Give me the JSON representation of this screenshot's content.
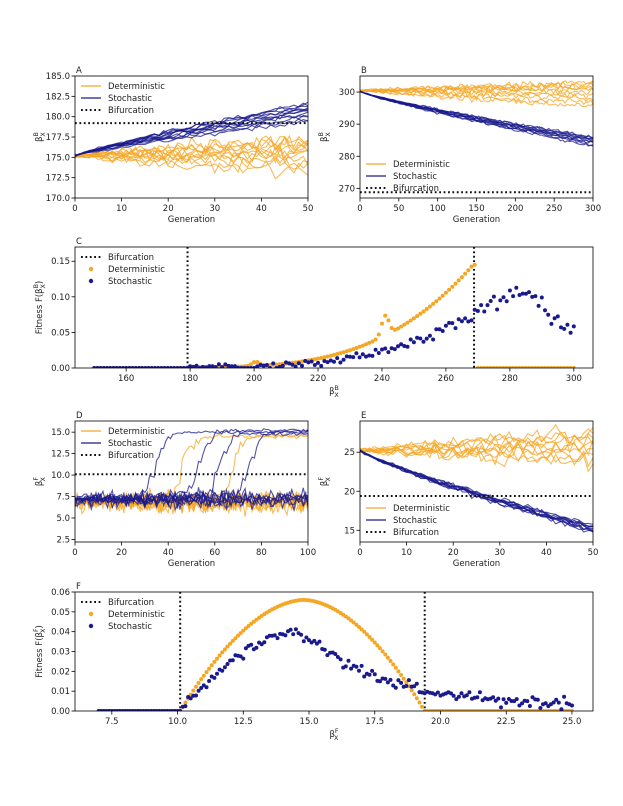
{
  "colors": {
    "deterministic": "#f5a623",
    "stochastic": "#1a1a8c",
    "bifurcation": "#111111"
  },
  "chart_data": [
    {
      "id": "A",
      "type": "line",
      "panel_label": "A",
      "xlabel": "Generation",
      "ylabel": "β_X^B",
      "ylabel_base": "β",
      "ylabel_sub": "X",
      "ylabel_sup": "B",
      "xlim": [
        0,
        50
      ],
      "ylim": [
        170,
        185
      ],
      "xticks": [
        0,
        10,
        20,
        30,
        40,
        50
      ],
      "xtick_labels": [
        "0",
        "10",
        "20",
        "30",
        "40",
        "50"
      ],
      "yticks": [
        170,
        172.5,
        175,
        177.5,
        180,
        182.5,
        185
      ],
      "ytick_labels": [
        "170.0",
        "172.5",
        "175.0",
        "177.5",
        "180.0",
        "182.5",
        "185.0"
      ],
      "bifurcation": {
        "orientation": "horizontal",
        "value": 179.2
      },
      "legend": {
        "position": "top-left",
        "entries": [
          {
            "label": "Deterministic",
            "style": "line",
            "series": "deterministic"
          },
          {
            "label": "Stochastic",
            "style": "line",
            "series": "stochastic"
          },
          {
            "label": "Bifurcation",
            "style": "dotted",
            "series": "bifurcation"
          }
        ]
      },
      "series": [
        {
          "name": "Deterministic",
          "n_runs": 12,
          "generations": 50,
          "start": 175.2,
          "end_values": [
            173.0,
            173.8,
            174.4,
            174.9,
            175.3,
            175.6,
            175.9,
            176.2,
            176.5,
            176.8,
            177.0,
            177.3
          ],
          "noise": 0.9
        },
        {
          "name": "Stochastic",
          "n_runs": 12,
          "generations": 50,
          "start": 175.2,
          "end_values": [
            179.4,
            179.7,
            180.0,
            180.2,
            180.4,
            180.6,
            180.8,
            181.0,
            181.1,
            181.3,
            181.5,
            181.7
          ],
          "noise": 0.3
        }
      ]
    },
    {
      "id": "B",
      "type": "line",
      "panel_label": "B",
      "xlabel": "Generation",
      "ylabel": "β_X^B",
      "ylabel_base": "β",
      "ylabel_sub": "X",
      "ylabel_sup": "B",
      "xlim": [
        0,
        300
      ],
      "ylim": [
        267,
        305
      ],
      "xticks": [
        0,
        50,
        100,
        150,
        200,
        250,
        300
      ],
      "xtick_labels": [
        "0",
        "50",
        "100",
        "150",
        "200",
        "250",
        "300"
      ],
      "yticks": [
        270,
        280,
        290,
        300
      ],
      "ytick_labels": [
        "270",
        "280",
        "290",
        "300"
      ],
      "bifurcation": {
        "orientation": "horizontal",
        "value": 268.8
      },
      "legend": {
        "position": "lower-left",
        "entries": [
          {
            "label": "Deterministic",
            "style": "line",
            "series": "deterministic"
          },
          {
            "label": "Stochastic",
            "style": "line",
            "series": "stochastic"
          },
          {
            "label": "Bifurcation",
            "style": "dotted",
            "series": "bifurcation"
          }
        ]
      },
      "series": [
        {
          "name": "Deterministic",
          "n_runs": 10,
          "generations": 300,
          "start": 300.5,
          "end_values": [
            295.5,
            296.8,
            298.0,
            299.0,
            300.0,
            300.8,
            301.5,
            302.0,
            302.6,
            303.0
          ],
          "noise": 0.9
        },
        {
          "name": "Stochastic",
          "n_runs": 10,
          "generations": 300,
          "start": 300.2,
          "end_values": [
            283.2,
            283.6,
            284.0,
            284.3,
            284.6,
            284.9,
            285.2,
            285.5,
            285.8,
            286.0
          ],
          "noise": 0.4
        }
      ]
    },
    {
      "id": "C",
      "type": "scatter",
      "panel_label": "C",
      "xlabel": "β_X^B",
      "xlabel_base": "β",
      "xlabel_sub": "X",
      "xlabel_sup": "B",
      "ylabel": "Fitness F(β_X^B)",
      "ylabel_prefix": "Fitness F(",
      "ylabel_base": "β",
      "ylabel_sub": "X",
      "ylabel_sup": "B",
      "ylabel_suffix": ")",
      "xlim": [
        144,
        306
      ],
      "ylim": [
        0,
        0.17
      ],
      "xticks": [
        160,
        180,
        200,
        220,
        240,
        260,
        280,
        300
      ],
      "xtick_labels": [
        "160",
        "180",
        "200",
        "220",
        "240",
        "260",
        "280",
        "300"
      ],
      "yticks": [
        0,
        0.05,
        0.1,
        0.15
      ],
      "ytick_labels": [
        "0.00",
        "0.05",
        "0.10",
        "0.15"
      ],
      "bifurcation": {
        "orientation": "vertical",
        "values": [
          179.2,
          268.8
        ]
      },
      "legend": {
        "position": "top-left",
        "entries": [
          {
            "label": "Bifurcation",
            "style": "dotted",
            "series": "bifurcation"
          },
          {
            "label": "Deterministic",
            "style": "dot",
            "series": "deterministic"
          },
          {
            "label": "Stochastic",
            "style": "dot",
            "series": "stochastic"
          }
        ]
      },
      "series": [
        {
          "name": "Deterministic",
          "x_range": [
            150,
            300
          ],
          "bumps": [
            {
              "x": 200.5,
              "h": 0.006
            },
            {
              "x": 241,
              "h": 0.028
            }
          ],
          "peak": {
            "x": 268.5,
            "y": 0.145
          },
          "zero_after": 269
        },
        {
          "name": "Stochastic",
          "x_range": [
            150,
            300
          ],
          "peak": {
            "x": 282,
            "y": 0.112
          }
        }
      ]
    },
    {
      "id": "D",
      "type": "line",
      "panel_label": "D",
      "xlabel": "Generation",
      "ylabel": "β_X^F",
      "ylabel_base": "β",
      "ylabel_sub": "X",
      "ylabel_sup": "F",
      "xlim": [
        0,
        100
      ],
      "ylim": [
        2.2,
        16.3
      ],
      "xticks": [
        0,
        20,
        40,
        60,
        80,
        100
      ],
      "xtick_labels": [
        "0",
        "20",
        "40",
        "60",
        "80",
        "100"
      ],
      "yticks": [
        2.5,
        5.0,
        7.5,
        10.0,
        12.5,
        15.0
      ],
      "ytick_labels": [
        "2.5",
        "5.0",
        "7.5",
        "10.0",
        "12.5",
        "15.0"
      ],
      "bifurcation": {
        "orientation": "horizontal",
        "value": 10.1
      },
      "legend": {
        "position": "top-left",
        "entries": [
          {
            "label": "Deterministic",
            "style": "line",
            "series": "deterministic"
          },
          {
            "label": "Stochastic",
            "style": "line",
            "series": "stochastic"
          },
          {
            "label": "Bifurcation",
            "style": "dotted",
            "series": "bifurcation"
          }
        ]
      },
      "series": [
        {
          "name": "Deterministic",
          "n_runs": 10,
          "generations": 100,
          "start": 6.8,
          "switch_runs": [
            {
              "at": 46,
              "to": 14.5
            },
            {
              "at": 68,
              "to": 14.6
            }
          ],
          "noise": 1.1
        },
        {
          "name": "Stochastic",
          "n_runs": 10,
          "generations": 100,
          "start": 7.2,
          "switch_runs": [
            {
              "at": 35,
              "to": 15.0
            },
            {
              "at": 54,
              "to": 15.2
            },
            {
              "at": 62,
              "to": 14.8
            },
            {
              "at": 75,
              "to": 15.1
            }
          ],
          "noise": 0.9
        }
      ]
    },
    {
      "id": "E",
      "type": "line",
      "panel_label": "E",
      "xlabel": "Generation",
      "ylabel": "β_X^F",
      "ylabel_base": "β",
      "ylabel_sub": "X",
      "ylabel_sup": "F",
      "xlim": [
        0,
        50
      ],
      "ylim": [
        13.5,
        29
      ],
      "xticks": [
        0,
        10,
        20,
        30,
        40,
        50
      ],
      "xtick_labels": [
        "0",
        "10",
        "20",
        "30",
        "40",
        "50"
      ],
      "yticks": [
        15,
        20,
        25
      ],
      "ytick_labels": [
        "15",
        "20",
        "25"
      ],
      "bifurcation": {
        "orientation": "horizontal",
        "value": 19.4
      },
      "legend": {
        "position": "lower-left",
        "entries": [
          {
            "label": "Deterministic",
            "style": "line",
            "series": "deterministic"
          },
          {
            "label": "Stochastic",
            "style": "line",
            "series": "stochastic"
          },
          {
            "label": "Bifurcation",
            "style": "dotted",
            "series": "bifurcation"
          }
        ]
      },
      "series": [
        {
          "name": "Deterministic",
          "n_runs": 10,
          "generations": 50,
          "start": 25.2,
          "end_values": [
            23.8,
            24.3,
            24.8,
            25.2,
            25.6,
            26.0,
            26.4,
            26.8,
            27.1,
            27.4
          ],
          "noise": 1.0
        },
        {
          "name": "Stochastic",
          "n_runs": 10,
          "generations": 50,
          "start": 25.2,
          "end_values": [
            14.8,
            14.9,
            15.0,
            15.0,
            15.1,
            15.2,
            15.3,
            15.4,
            15.5,
            15.6
          ],
          "noise": 0.4
        }
      ]
    },
    {
      "id": "F",
      "type": "scatter",
      "panel_label": "F",
      "xlabel": "β_X^F",
      "xlabel_base": "β",
      "xlabel_sub": "X",
      "xlabel_sup": "F",
      "ylabel": "Fitness F(β_X^F)",
      "ylabel_prefix": "Fitness F(",
      "ylabel_base": "β",
      "ylabel_sub": "X",
      "ylabel_sup": "F",
      "ylabel_suffix": ")",
      "xlim": [
        6.1,
        25.8
      ],
      "ylim": [
        0,
        0.06
      ],
      "xticks": [
        7.5,
        10.0,
        12.5,
        15.0,
        17.5,
        20.0,
        22.5,
        25.0
      ],
      "xtick_labels": [
        "7.5",
        "10.0",
        "12.5",
        "15.0",
        "17.5",
        "20.0",
        "22.5",
        "25.0"
      ],
      "yticks": [
        0,
        0.01,
        0.02,
        0.03,
        0.04,
        0.05,
        0.06
      ],
      "ytick_labels": [
        "0.00",
        "0.01",
        "0.02",
        "0.03",
        "0.04",
        "0.05",
        "0.06"
      ],
      "bifurcation": {
        "orientation": "vertical",
        "values": [
          10.1,
          19.4
        ]
      },
      "legend": {
        "position": "top-left",
        "entries": [
          {
            "label": "Bifurcation",
            "style": "dotted",
            "series": "bifurcation"
          },
          {
            "label": "Deterministic",
            "style": "dot",
            "series": "deterministic"
          },
          {
            "label": "Stochastic",
            "style": "dot",
            "series": "stochastic"
          }
        ]
      },
      "series": [
        {
          "name": "Deterministic",
          "x_range": [
            7,
            25
          ],
          "peak": {
            "x": 14.8,
            "y": 0.056
          },
          "zero_after": 19.4
        },
        {
          "name": "Stochastic",
          "x_range": [
            7,
            25
          ],
          "peak": {
            "x": 14.6,
            "y": 0.041
          },
          "tail_end": 0.002
        }
      ]
    }
  ]
}
